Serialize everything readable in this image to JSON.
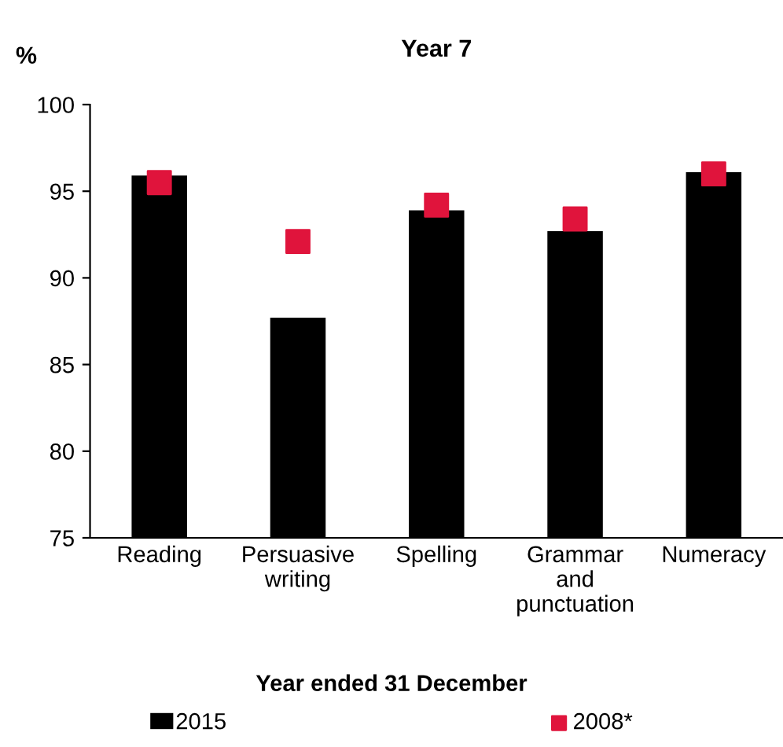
{
  "chart_data": {
    "type": "bar",
    "title": "Year 7",
    "ylabel": "%",
    "xlabel": "Year ended 31 December",
    "categories": [
      "Reading",
      "Persuasive\nwriting",
      "Spelling",
      "Grammar\nand\npunctuation",
      "Numeracy"
    ],
    "series": [
      {
        "name": "2015",
        "color": "#000000",
        "values": [
          95.9,
          87.7,
          93.9,
          92.7,
          96.1
        ]
      },
      {
        "name": "2008*",
        "type": "scatter",
        "marker": "square",
        "color": "#e0143c",
        "values": [
          95.5,
          92.1,
          94.2,
          93.4,
          96.0
        ]
      }
    ],
    "ylim": [
      75,
      100
    ],
    "yticks": [
      75,
      80,
      85,
      90,
      95,
      100
    ],
    "grid": false,
    "legend": "bottom"
  }
}
